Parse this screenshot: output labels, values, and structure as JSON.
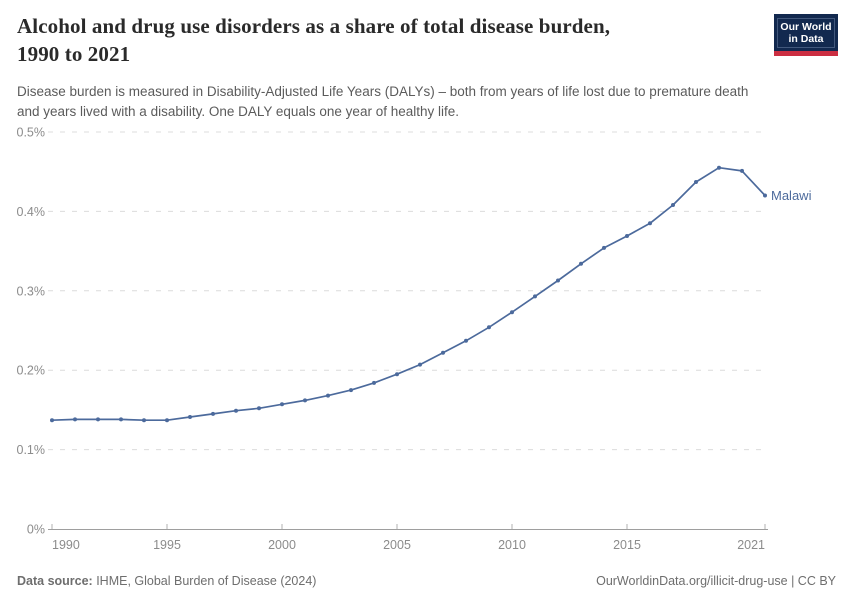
{
  "header": {
    "title_line1": "Alcohol and drug use disorders as a share of total disease burden,",
    "title_line2": "1990 to 2021",
    "subtitle": "Disease burden is measured in Disability-Adjusted Life Years (DALYs) – both from years of life lost due to premature death and years lived with a disability. One DALY equals one year of healthy life.",
    "logo": {
      "line1": "Our World",
      "line2": "in Data"
    }
  },
  "chart_data": {
    "type": "line",
    "title": "Alcohol and drug use disorders as a share of total disease burden, 1990 to 2021",
    "entity_label": "Malawi",
    "x": [
      1990,
      1991,
      1992,
      1993,
      1994,
      1995,
      1996,
      1997,
      1998,
      1999,
      2000,
      2001,
      2002,
      2003,
      2004,
      2005,
      2006,
      2007,
      2008,
      2009,
      2010,
      2011,
      2012,
      2013,
      2014,
      2015,
      2016,
      2017,
      2018,
      2019,
      2020,
      2021
    ],
    "series": [
      {
        "name": "Malawi",
        "values_percent": [
          0.137,
          0.138,
          0.138,
          0.138,
          0.137,
          0.137,
          0.141,
          0.145,
          0.149,
          0.152,
          0.157,
          0.162,
          0.168,
          0.175,
          0.184,
          0.195,
          0.207,
          0.222,
          0.237,
          0.254,
          0.273,
          0.293,
          0.313,
          0.334,
          0.354,
          0.369,
          0.385,
          0.408,
          0.437,
          0.455,
          0.451,
          0.42
        ]
      }
    ],
    "xlim": [
      1990,
      2021
    ],
    "ylim_percent": [
      0,
      0.5
    ],
    "x_ticks": [
      1990,
      1995,
      2000,
      2005,
      2010,
      2015,
      2021
    ],
    "y_ticks": [
      "0%",
      "0.1%",
      "0.2%",
      "0.3%",
      "0.4%",
      "0.5%"
    ],
    "grid": "dashed horizontal",
    "legend_position": "end-of-line label",
    "unit": "%",
    "colors": {
      "line": "#4C6A9C",
      "series_label": "#4C6A9C",
      "gridline": "#dcdcdc",
      "axis": "#9e9e9e",
      "tick": "#b0b0b0",
      "tick_label": "#8c8c8c"
    }
  },
  "footer": {
    "source_label": "Data source:",
    "source_text": " IHME, Global Burden of Disease (2024)",
    "right_text": "OurWorldinData.org/illicit-drug-use | CC BY"
  }
}
